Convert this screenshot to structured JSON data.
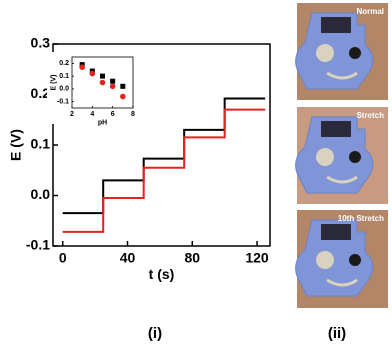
{
  "chart_data": [
    {
      "type": "line",
      "xlabel": "t (s)",
      "ylabel": "E (V)",
      "x": [
        0,
        25,
        25,
        50,
        50,
        75,
        75,
        100,
        100,
        125
      ],
      "series": [
        {
          "color": "#000000",
          "values": [
            -0.035,
            -0.035,
            0.03,
            0.03,
            0.073,
            0.073,
            0.13,
            0.13,
            0.192,
            0.192
          ]
        },
        {
          "color": "#e0241c",
          "values": [
            -0.072,
            -0.072,
            -0.005,
            -0.005,
            0.055,
            0.055,
            0.115,
            0.115,
            0.17,
            0.17
          ]
        }
      ],
      "xlim": [
        -6,
        128
      ],
      "xticks": [
        0,
        40,
        80,
        120
      ],
      "ylim": [
        -0.1,
        0.3
      ],
      "yticks": [
        {
          "value": -0.1,
          "label": "-0.1"
        },
        {
          "value": 0,
          "label": "0.0"
        },
        0.1,
        0.2,
        0.3
      ]
    },
    {
      "type": "scatter",
      "xlabel": "pH",
      "ylabel": "E (V)",
      "x": [
        3,
        4,
        5,
        6,
        7
      ],
      "series": [
        {
          "color": "#000000",
          "marker": "square",
          "values": [
            0.19,
            0.14,
            0.1,
            0.06,
            0.02
          ]
        },
        {
          "color": "#e0241c",
          "marker": "circle",
          "values": [
            0.17,
            0.12,
            0.05,
            0.02,
            -0.06
          ]
        }
      ],
      "xlim": [
        2,
        8
      ],
      "xticks": [
        2,
        4,
        6,
        8
      ],
      "ylim": [
        -0.15,
        0.25
      ],
      "yticks": [
        -0.1,
        {
          "value": 0,
          "label": "0.0"
        },
        0.1,
        0.2
      ]
    }
  ],
  "photos": [
    {
      "label": "Normal"
    },
    {
      "label": "Stretch"
    },
    {
      "label": "10th Stretch"
    }
  ],
  "panel_labels": [
    "(i)",
    "(ii)"
  ]
}
